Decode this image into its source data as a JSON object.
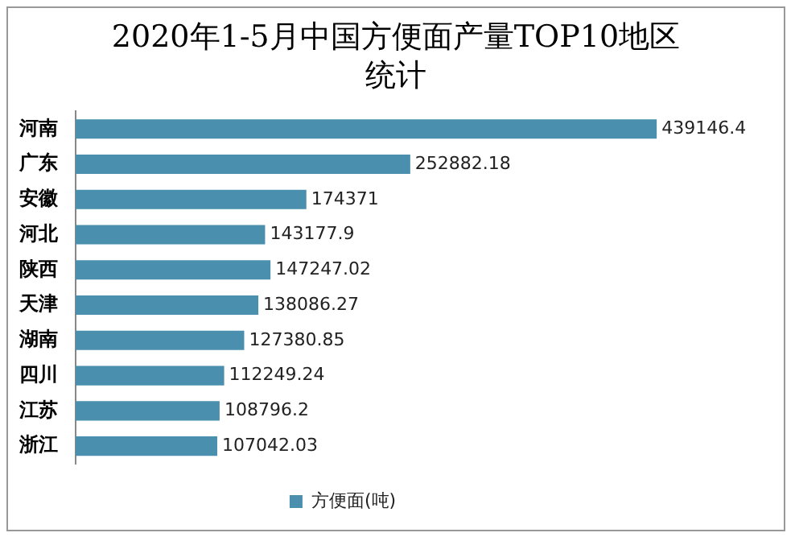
{
  "chart_data": {
    "type": "bar",
    "orientation": "horizontal",
    "title": "2020年1-5月中国方便面产量TOP10地区统计",
    "categories": [
      "河南",
      "广东",
      "安徽",
      "河北",
      "陕西",
      "天津",
      "湖南",
      "四川",
      "江苏",
      "浙江"
    ],
    "series": [
      {
        "name": "方便面(吨)",
        "color": "#4a8fae",
        "values": [
          439146.4,
          252882.18,
          174371,
          143177.9,
          147247.02,
          138086.27,
          127380.85,
          112249.24,
          108796.2,
          107042.03
        ]
      }
    ],
    "data_labels": true,
    "legend": "bottom"
  }
}
